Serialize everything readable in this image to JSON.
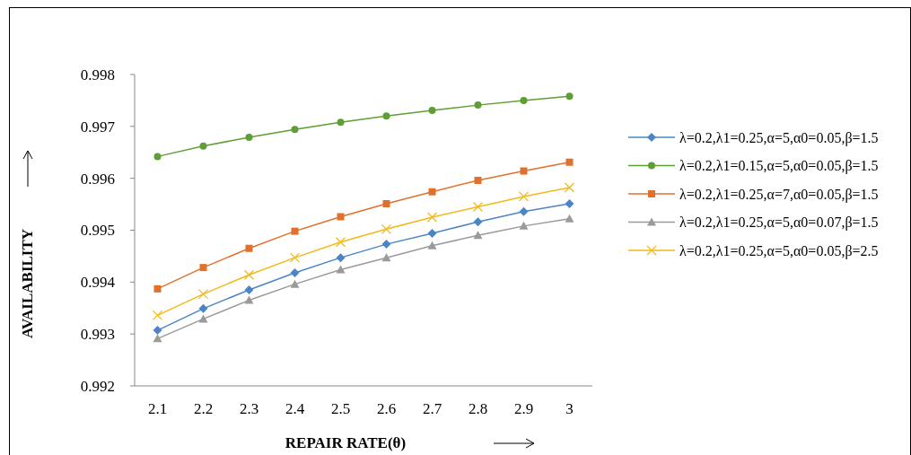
{
  "chart_data": {
    "type": "line",
    "xlabel": "REPAIR RATE(θ)",
    "ylabel": "AVAILABILITY",
    "categories": [
      "2.1",
      "2.2",
      "2.3",
      "2.4",
      "2.5",
      "2.6",
      "2.7",
      "2.8",
      "2.9",
      "3"
    ],
    "ylim": [
      0.992,
      0.998
    ],
    "yticks": [
      0.992,
      0.993,
      0.994,
      0.995,
      0.996,
      0.997,
      0.998
    ],
    "grid": false,
    "legend": "right",
    "line_style": "solid",
    "series": [
      {
        "name": "λ=0.2,λ1=0.25,α=5,α0=0.05,β=1.5",
        "color": "#4a86c5",
        "marker": "diamond",
        "values": [
          0.99307,
          0.99349,
          0.99385,
          0.99418,
          0.99447,
          0.99473,
          0.99494,
          0.99516,
          0.99536,
          0.99551
        ]
      },
      {
        "name": "λ=0.2,λ1=0.15,α=5,α0=0.05,β=1.5",
        "color": "#5f9e35",
        "marker": "circle",
        "values": [
          0.99642,
          0.99662,
          0.99679,
          0.99694,
          0.99708,
          0.9972,
          0.99731,
          0.99741,
          0.9975,
          0.99758
        ]
      },
      {
        "name": "λ=0.2,λ1=0.25,α=7,α0=0.05,β=1.5",
        "color": "#e0712c",
        "marker": "square",
        "values": [
          0.99387,
          0.99428,
          0.99465,
          0.99498,
          0.99526,
          0.99551,
          0.99574,
          0.99596,
          0.99614,
          0.99631
        ]
      },
      {
        "name": "λ=0.2,λ1=0.25,α=5,α0=0.07,β=1.5",
        "color": "#9a9a9a",
        "marker": "triangle",
        "values": [
          0.99291,
          0.99329,
          0.99365,
          0.99396,
          0.99424,
          0.99447,
          0.9947,
          0.9949,
          0.99508,
          0.99522
        ]
      },
      {
        "name": "λ=0.2,λ1=0.25,α=5,α0=0.05,β=2.5",
        "color": "#f2b918",
        "marker": "cross",
        "values": [
          0.99336,
          0.99377,
          0.99414,
          0.99447,
          0.99477,
          0.99502,
          0.99525,
          0.99545,
          0.99565,
          0.99582
        ]
      }
    ]
  }
}
